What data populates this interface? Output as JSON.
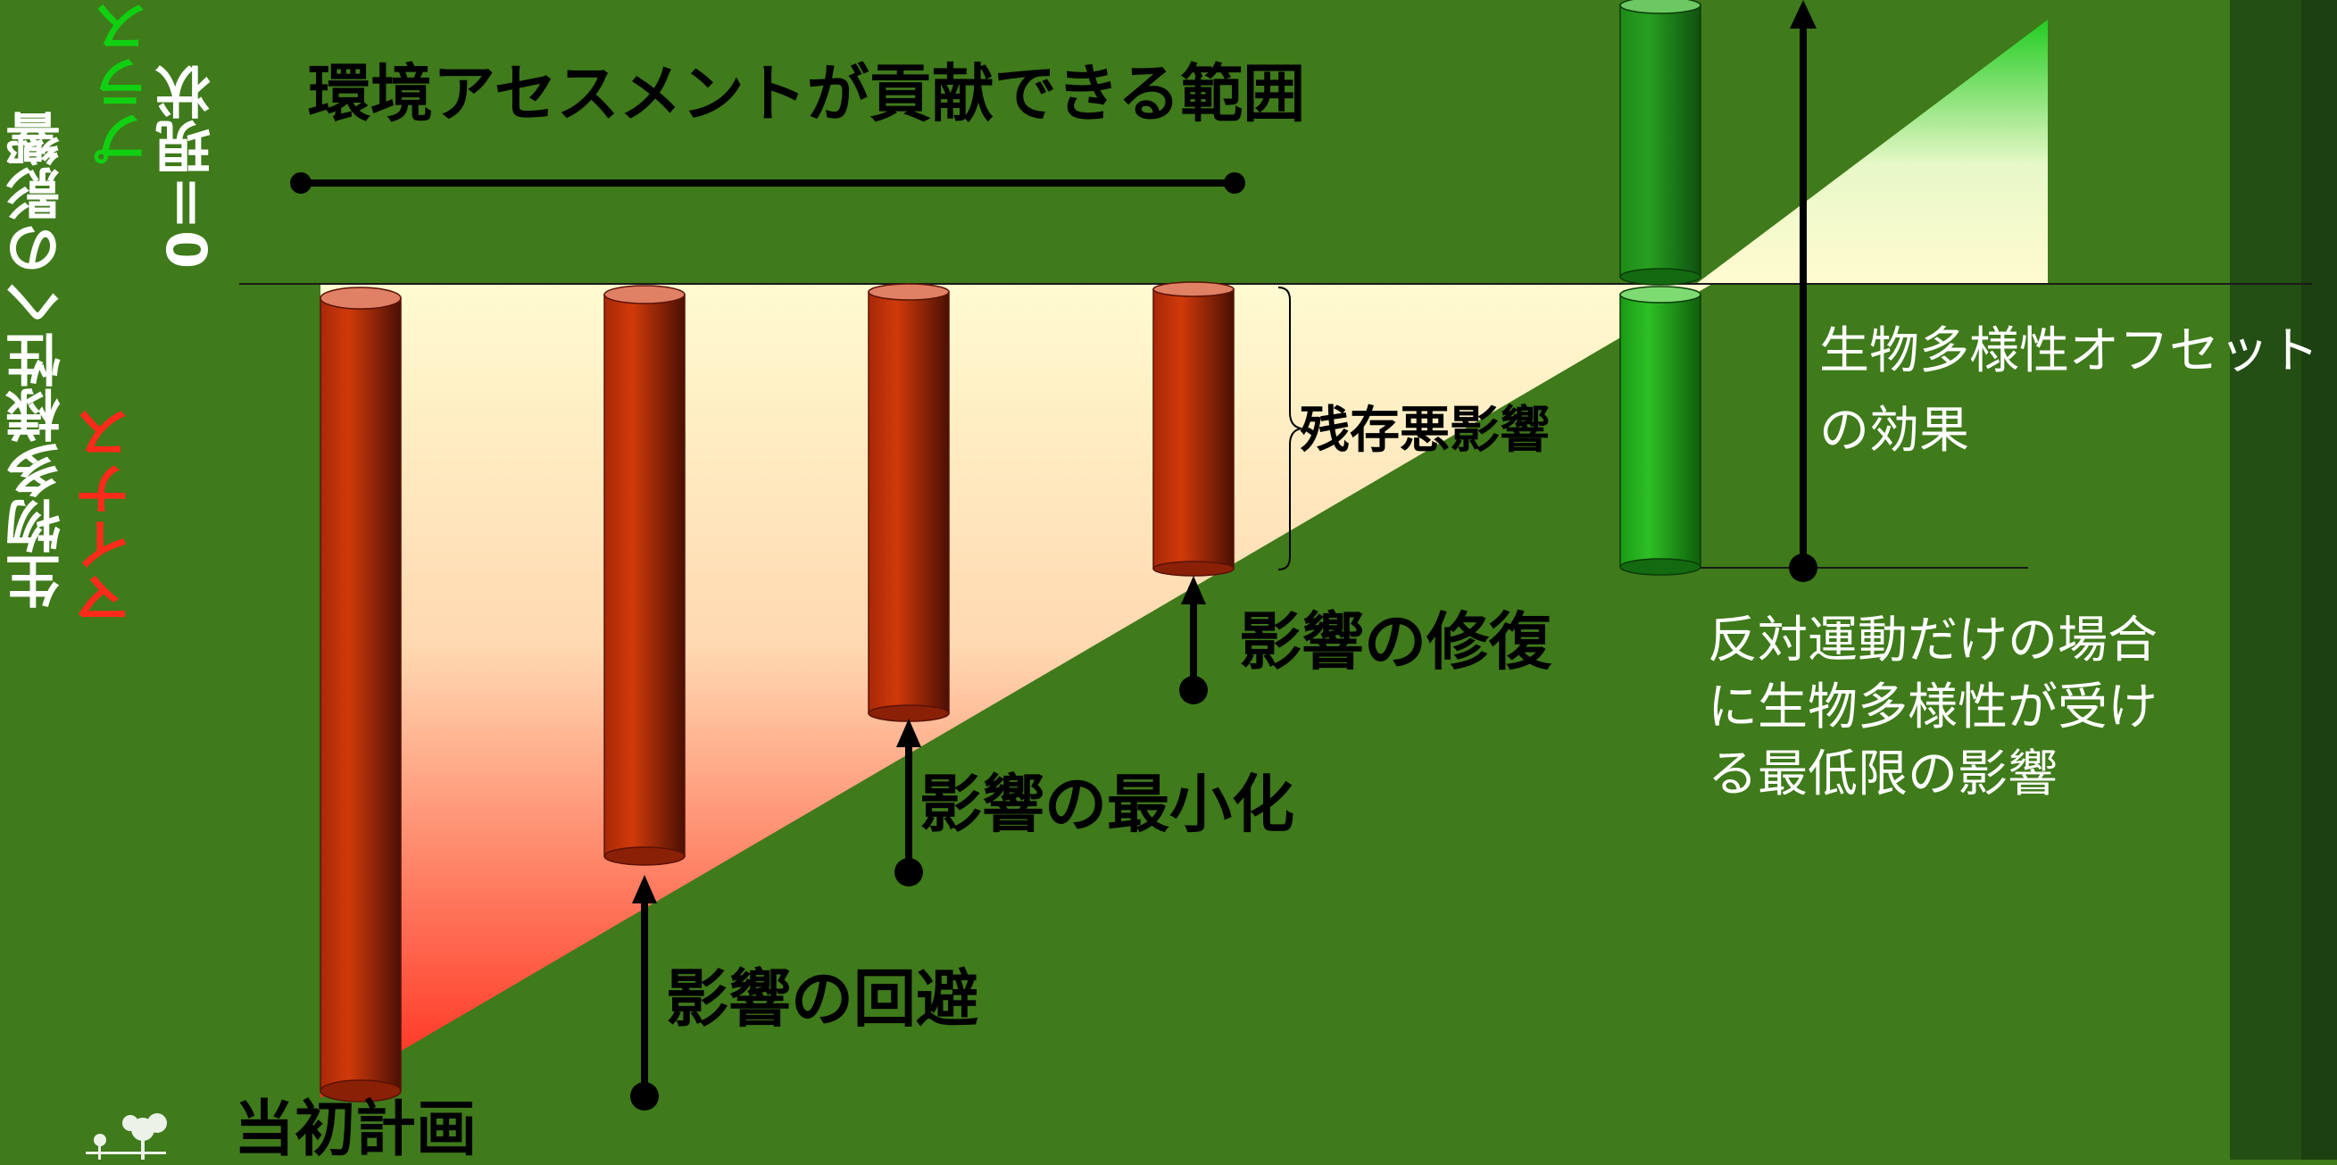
{
  "colors": {
    "background": "#3f7a1b",
    "negative_impact": "#c73008",
    "offset_bar": "#26b01c",
    "plus_label": "#11d011",
    "minus_label": "#ff2a1a",
    "fill_top": "#fffbd0",
    "fill_bottom": "#ff2a1a",
    "line": "#000000"
  },
  "axis": {
    "title": "生物多様性への影響",
    "plus_label": "プラス",
    "zero_label": "0＝現状",
    "minus_label": "マイナス"
  },
  "scope": {
    "label": "環境アセスメントが貢献できる範囲"
  },
  "stages": [
    {
      "label": "当初計画",
      "icon": "tree-icon"
    },
    {
      "label": "影響の回避"
    },
    {
      "label": "影響の最小化"
    },
    {
      "label": "影響の修復"
    }
  ],
  "residual": {
    "label": "残存悪影響"
  },
  "offset": {
    "label_line1": "生物多様性オフセット",
    "label_line2": "の効果"
  },
  "minimum_impact": {
    "line1": "反対運動だけの場合",
    "line2": "に生物多様性が受け",
    "line3": "る最低限の影響"
  }
}
